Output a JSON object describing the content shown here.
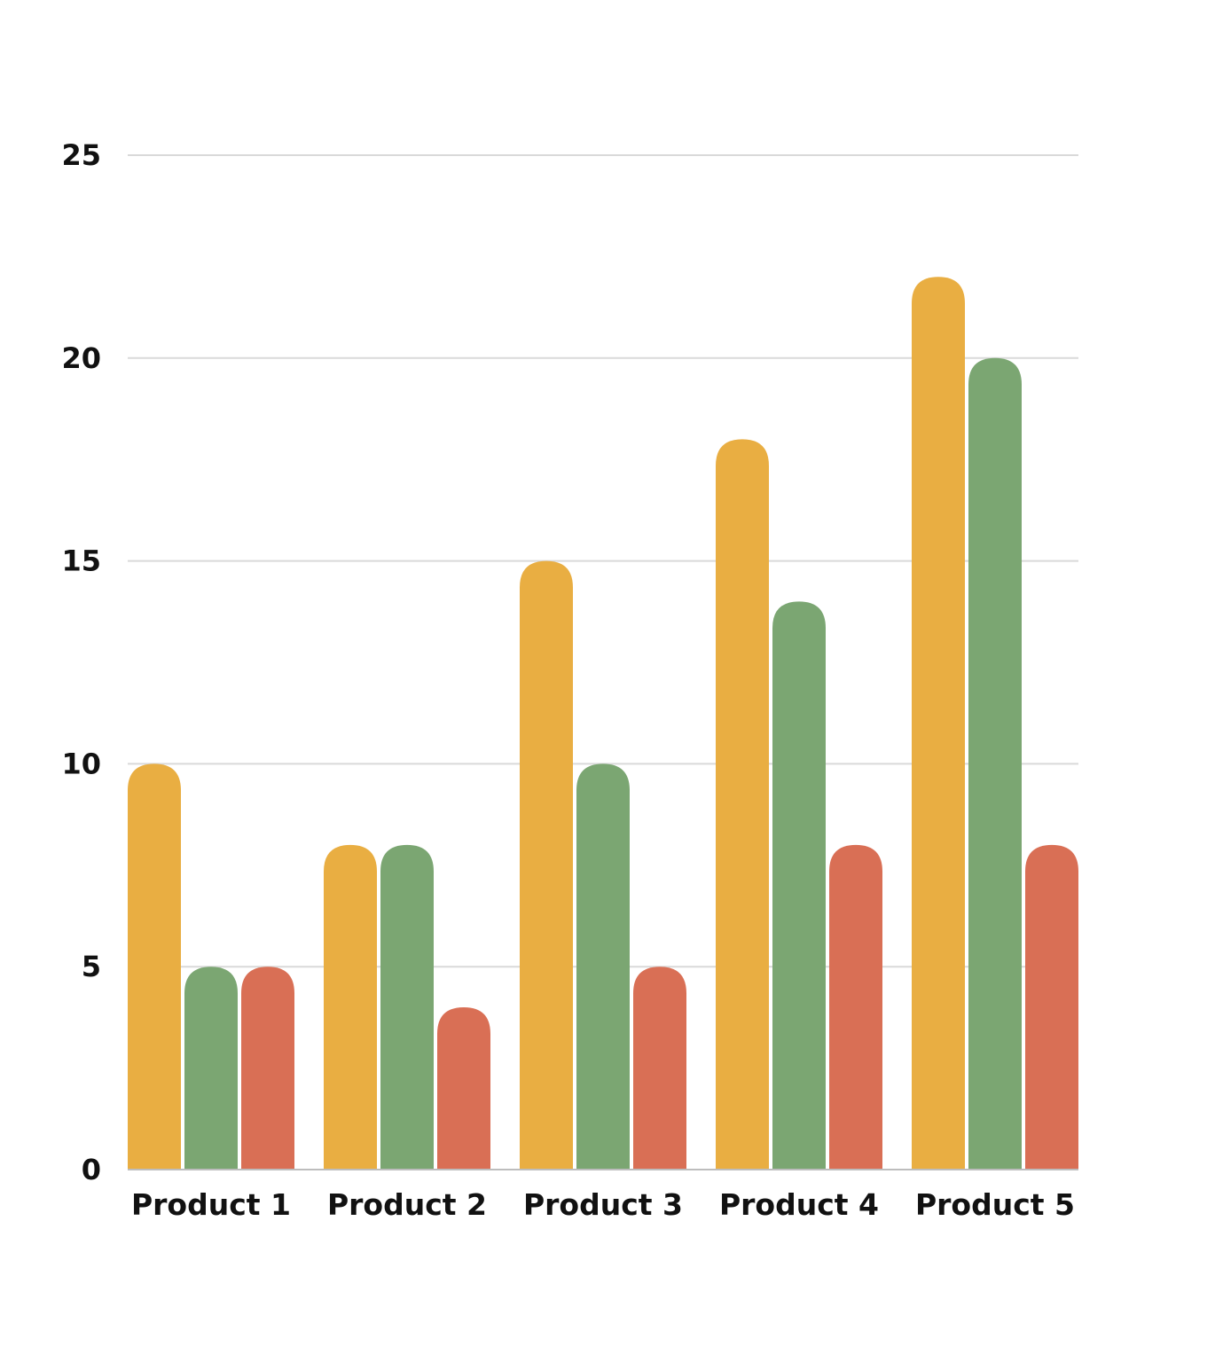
{
  "chart_data": {
    "type": "bar",
    "title": "",
    "xlabel": "",
    "ylabel": "",
    "categories": [
      "Product 1",
      "Product 2",
      "Product 3",
      "Product 4",
      "Product 5"
    ],
    "series": [
      {
        "values": [
          10,
          8,
          15,
          18,
          22
        ]
      },
      {
        "values": [
          5,
          8,
          10,
          14,
          20
        ]
      },
      {
        "values": [
          5,
          4,
          5,
          8,
          8
        ]
      }
    ],
    "ylim": [
      0,
      25
    ],
    "yticks": [
      0,
      5,
      10,
      15,
      20,
      25
    ],
    "grid": true,
    "legend": "none"
  },
  "colors": {
    "series": [
      "#E9AE42",
      "#7BA672",
      "#D96F55"
    ],
    "grid": "#D9D9D9",
    "axis": "#BDBDBD",
    "text": "#111111"
  }
}
